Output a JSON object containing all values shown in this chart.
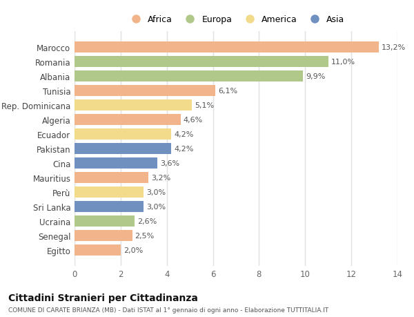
{
  "categories": [
    "Marocco",
    "Romania",
    "Albania",
    "Tunisia",
    "Rep. Dominicana",
    "Algeria",
    "Ecuador",
    "Pakistan",
    "Cina",
    "Mauritius",
    "Perù",
    "Sri Lanka",
    "Ucraina",
    "Senegal",
    "Egitto"
  ],
  "values": [
    13.2,
    11.0,
    9.9,
    6.1,
    5.1,
    4.6,
    4.2,
    4.2,
    3.6,
    3.2,
    3.0,
    3.0,
    2.6,
    2.5,
    2.0
  ],
  "labels": [
    "13,2%",
    "11,0%",
    "9,9%",
    "6,1%",
    "5,1%",
    "4,6%",
    "4,2%",
    "4,2%",
    "3,6%",
    "3,2%",
    "3,0%",
    "3,0%",
    "2,6%",
    "2,5%",
    "2,0%"
  ],
  "continent": [
    "Africa",
    "Europa",
    "Europa",
    "Africa",
    "America",
    "Africa",
    "America",
    "Asia",
    "Asia",
    "Africa",
    "America",
    "Asia",
    "Europa",
    "Africa",
    "Africa"
  ],
  "colors": {
    "Africa": "#F2B48A",
    "Europa": "#B0C98A",
    "America": "#F2DC8C",
    "Asia": "#7090C0"
  },
  "legend_labels": [
    "Africa",
    "Europa",
    "America",
    "Asia"
  ],
  "legend_colors": [
    "#F2B48A",
    "#B0C98A",
    "#F2DC8C",
    "#7090C0"
  ],
  "xlim": [
    0,
    14
  ],
  "xticks": [
    0,
    2,
    4,
    6,
    8,
    10,
    12,
    14
  ],
  "title": "Cittadini Stranieri per Cittadinanza",
  "subtitle": "COMUNE DI CARATE BRIANZA (MB) - Dati ISTAT al 1° gennaio di ogni anno - Elaborazione TUTTITALIA.IT",
  "bg_color": "#ffffff",
  "bar_height": 0.75
}
